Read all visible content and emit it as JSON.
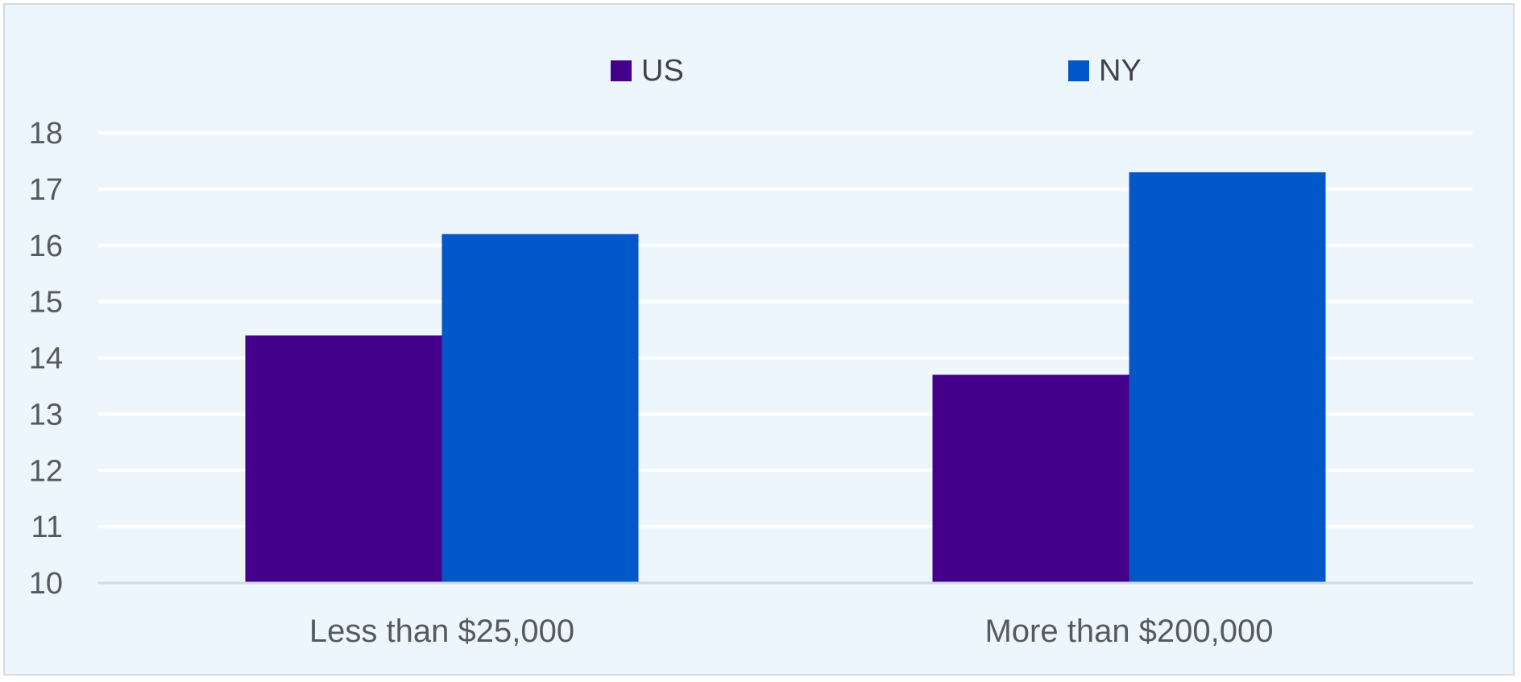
{
  "chart_data": {
    "type": "bar",
    "categories": [
      "Less than $25,000",
      "More than $200,000"
    ],
    "series": [
      {
        "name": "US",
        "color": "#45008b",
        "values": [
          14.4,
          13.7
        ]
      },
      {
        "name": "NY",
        "color": "#0358c9",
        "values": [
          16.2,
          17.3
        ]
      }
    ],
    "ylim": [
      10,
      18
    ],
    "yticks": [
      10,
      11,
      12,
      13,
      14,
      15,
      16,
      17,
      18
    ],
    "legend": "top-center",
    "grid": true,
    "title": "",
    "xlabel": "",
    "ylabel": ""
  }
}
